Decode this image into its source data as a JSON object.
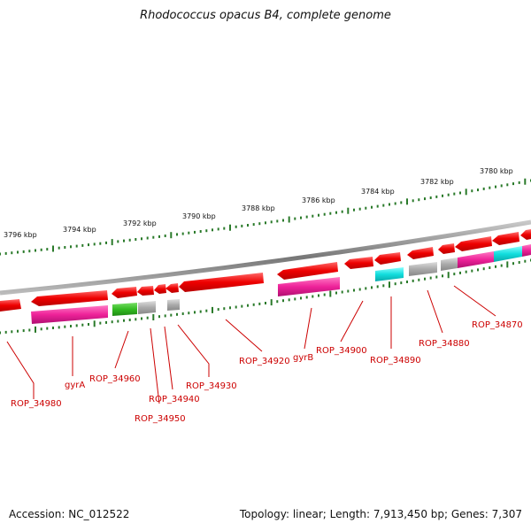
{
  "title": "Rhodococcus opacus B4, complete genome",
  "footer": {
    "accession": "Accession: NC_012522",
    "summary": "Topology: linear; Length: 7,913,450 bp; Genes: 7,307"
  },
  "scale": {
    "unit": "kbp",
    "labels": [
      "3796 kbp",
      "3794 kbp",
      "3792 kbp",
      "3790 kbp",
      "3788 kbp",
      "3786 kbp",
      "3784 kbp",
      "3782 kbp",
      "3780 kbp"
    ]
  },
  "gene_labels": [
    "ROP_34980",
    "gyrA",
    "ROP_34960",
    "ROP_34950",
    "ROP_34940",
    "ROP_34930",
    "ROP_34920",
    "gyrB",
    "ROP_34900",
    "ROP_34890",
    "ROP_34880",
    "ROP_34870"
  ],
  "colors": {
    "gene": "#ee0000",
    "cds_magenta": "#ee2299",
    "cds_green": "#33bb22",
    "cds_grey": "#aaaaaa",
    "cds_cyan": "#11dddd",
    "tick": "#2a7a2a",
    "backbone": "#888888",
    "label": "#cc0000"
  }
}
